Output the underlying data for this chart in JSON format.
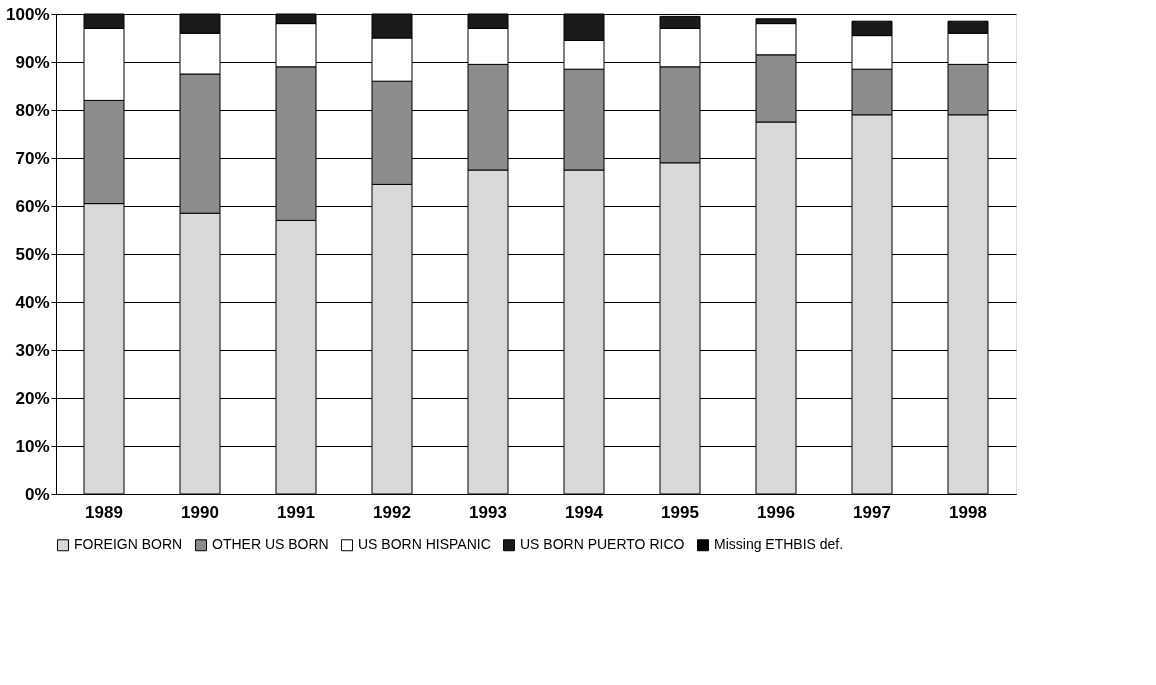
{
  "chart_data": {
    "type": "bar",
    "stacked": true,
    "categories": [
      "1989",
      "1990",
      "1991",
      "1992",
      "1993",
      "1994",
      "1995",
      "1996",
      "1997",
      "1998"
    ],
    "series": [
      {
        "name": "FOREIGN BORN",
        "color": "#d9d9d9",
        "values": [
          60.5,
          58.5,
          57,
          64.5,
          67.5,
          67.5,
          69,
          77.5,
          79,
          79
        ]
      },
      {
        "name": "OTHER US BORN",
        "color": "#8c8c8c",
        "values": [
          21.5,
          29,
          32,
          21.5,
          22,
          21,
          20,
          14,
          9.5,
          10.5
        ]
      },
      {
        "name": "US BORN HISPANIC",
        "color": "#ffffff",
        "values": [
          15,
          8.5,
          9,
          9,
          7.5,
          6,
          8,
          6.5,
          7,
          6.5
        ]
      },
      {
        "name": "US BORN PUERTO RICO",
        "color": "#1a1a1a",
        "values": [
          3,
          4,
          2,
          5,
          3,
          5.5,
          2.5,
          1,
          3,
          2.5
        ]
      },
      {
        "name": "Missing ETHBIS def.",
        "color": "#000000",
        "values": [
          null,
          null,
          null,
          null,
          null,
          null,
          null,
          null,
          null,
          null
        ]
      }
    ],
    "ylim": [
      0,
      100
    ],
    "yticks": [
      {
        "value": 0,
        "label": "0%"
      },
      {
        "value": 10,
        "label": "10%"
      },
      {
        "value": 20,
        "label": "20%"
      },
      {
        "value": 30,
        "label": "30%"
      },
      {
        "value": 40,
        "label": "40%"
      },
      {
        "value": 50,
        "label": "50%"
      },
      {
        "value": 60,
        "label": "60%"
      },
      {
        "value": 70,
        "label": "70%"
      },
      {
        "value": 80,
        "label": "80%"
      },
      {
        "value": 90,
        "label": "90%"
      },
      {
        "value": 100,
        "label": "100%"
      }
    ],
    "grid": "y",
    "legend": "bottom"
  }
}
